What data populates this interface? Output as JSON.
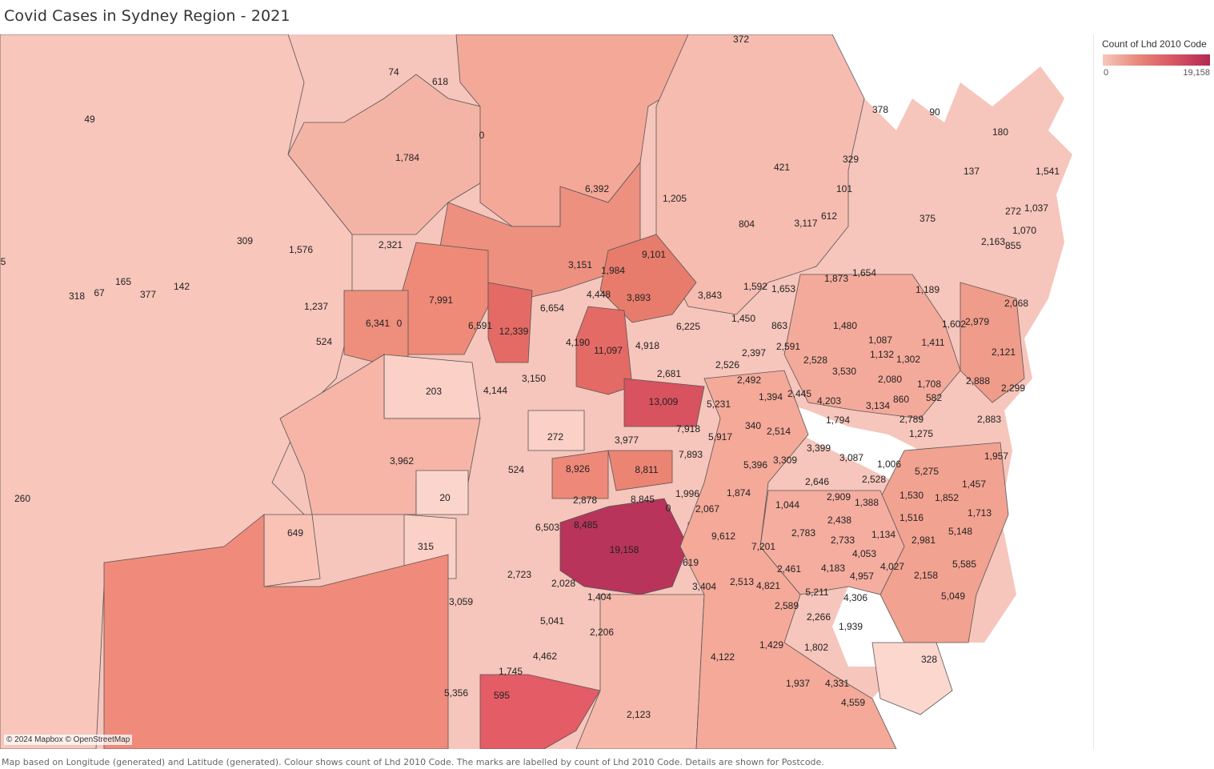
{
  "title": "Covid Cases in Sydney Region - 2021",
  "legend": {
    "title": "Count of Lhd 2010 Code",
    "min": "0",
    "max": "19,158",
    "colors": {
      "low": "#f7c7bc",
      "mid": "#e68879",
      "high": "#b22a52"
    }
  },
  "attribution": "© 2024 Mapbox © OpenStreetMap",
  "caption": "Map based on Longitude (generated) and Latitude (generated). Colour shows count of Lhd 2010 Code. The marks are labelled by count of Lhd 2010 Code. Details are shown for Postcode.",
  "postcode_values": [
    "372",
    "74",
    "618",
    "49",
    "0",
    "1,784",
    "378",
    "90",
    "180",
    "329",
    "421",
    "101",
    "137",
    "1,541",
    "6,392",
    "1,205",
    "272",
    "1,037",
    "612",
    "804",
    "3,117",
    "375",
    "2,163",
    "1,070",
    "855",
    "309",
    "1,576",
    "2,321",
    "9,101",
    "3,151",
    "1,984",
    "1,873",
    "1,654",
    "5",
    "318",
    "67",
    "165",
    "377",
    "142",
    "1,237",
    "7,991",
    "6,654",
    "4,448",
    "3,893",
    "3,843",
    "1,592",
    "1,653",
    "1,189",
    "2,068",
    "6,341",
    "0",
    "6,591",
    "12,339",
    "1,450",
    "863",
    "1,480",
    "1,602",
    "2,979",
    "524",
    "4,190",
    "11,097",
    "4,918",
    "6,225",
    "2,397",
    "2,591",
    "1,087",
    "1,411",
    "1,132",
    "1,302",
    "2,121",
    "2,526",
    "2,528",
    "3,530",
    "2,681",
    "2,492",
    "2,080",
    "1,708",
    "2,888",
    "203",
    "4,144",
    "3,150",
    "1,394",
    "2,445",
    "4,203",
    "860",
    "582",
    "2,299",
    "13,009",
    "5,231",
    "3,134",
    "1,794",
    "2,789",
    "2,883",
    "340",
    "2,514",
    "1,275",
    "7,918",
    "5,917",
    "272",
    "3,977",
    "3,399",
    "3,087",
    "1,957",
    "3,962",
    "7,893",
    "5,396",
    "3,309",
    "1,006",
    "5,275",
    "8,926",
    "8,811",
    "524",
    "2,646",
    "2,528",
    "1,457",
    "260",
    "20",
    "1,996",
    "1,874",
    "2,909",
    "1,530",
    "1,852",
    "2,878",
    "8,845",
    "0",
    "2,067",
    "1,044",
    "1,388",
    "1,516",
    "1,713",
    "6,503",
    "2,438",
    "8,485",
    "649",
    "9,612",
    "2,783",
    "1,134",
    "2,981",
    "5,148",
    "19,158",
    "7,201",
    "2,733",
    "315",
    "4,053",
    "619",
    "2,723",
    "2,461",
    "4,183",
    "4,957",
    "4,027",
    "5,585",
    "2,513",
    "2,028",
    "3,404",
    "4,821",
    "2,158",
    "1,404",
    "3,059",
    "5,211",
    "4,306",
    "5,049",
    "5,041",
    "2,589",
    "2,266",
    "1,939",
    "2,206",
    "1,429",
    "4,462",
    "1,802",
    "4,122",
    "328",
    "1,745",
    "1,937",
    "4,331",
    "5,356",
    "595",
    "4,559",
    "2,123"
  ]
}
